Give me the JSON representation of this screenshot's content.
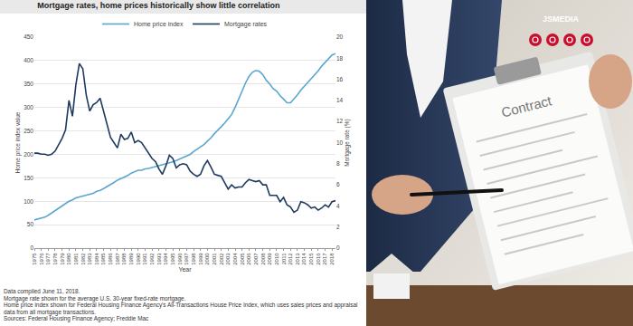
{
  "chart_data": {
    "type": "line",
    "title": "Mortgage rates, home prices historically show little correlation",
    "x_label": "Year",
    "y_label": "Home price index value",
    "y2_label": "Mortgage rate (%)",
    "notes": [
      "Data compiled June 11, 2018.",
      "Mortgage rate shown for the average U.S. 30-year fixed-rate mortgage.",
      "Home price index shown for Federal Housing Finance Agency's All-Transactions House Price Index, which uses sales prices and appraisal data from all mortgage transactions.",
      "Sources: Federal Housing Finance Agency; Freddie Mac"
    ],
    "x": [
      1975,
      1975.5,
      1976,
      1976.5,
      1977,
      1977.5,
      1978,
      1978.5,
      1979,
      1979.5,
      1980,
      1980.5,
      1981,
      1981.5,
      1982,
      1982.5,
      1983,
      1983.5,
      1984,
      1984.5,
      1985,
      1985.5,
      1986,
      1986.5,
      1987,
      1987.5,
      1988,
      1988.5,
      1989,
      1989.5,
      1990,
      1990.5,
      1991,
      1991.5,
      1992,
      1992.5,
      1993,
      1993.5,
      1994,
      1994.5,
      1995,
      1995.5,
      1996,
      1996.5,
      1997,
      1997.5,
      1998,
      1998.5,
      1999,
      1999.5,
      2000,
      2000.5,
      2001,
      2001.5,
      2002,
      2002.5,
      2003,
      2003.5,
      2004,
      2004.5,
      2005,
      2005.5,
      2006,
      2006.5,
      2007,
      2007.5,
      2008,
      2008.5,
      2009,
      2009.5,
      2010,
      2010.5,
      2011,
      2011.5,
      2012,
      2012.5,
      2013,
      2013.5,
      2014,
      2014.5,
      2015,
      2015.5,
      2016,
      2016.5,
      2017,
      2017.5,
      2018,
      2018.5
    ],
    "series": [
      {
        "name": "Home price index",
        "color": "#5ba6d0",
        "values": [
          60,
          62,
          64,
          66,
          70,
          75,
          80,
          85,
          90,
          95,
          100,
          103,
          107,
          109,
          111,
          112,
          115,
          117,
          121,
          123,
          127,
          131,
          136,
          140,
          145,
          148,
          152,
          155,
          160,
          163,
          166,
          166,
          169,
          170,
          172,
          174,
          175,
          177,
          180,
          182,
          184,
          187,
          190,
          193,
          197,
          200,
          206,
          211,
          216,
          221,
          228,
          235,
          244,
          251,
          259,
          267,
          276,
          285,
          300,
          318,
          335,
          352,
          366,
          375,
          379,
          377,
          370,
          358,
          350,
          340,
          335,
          325,
          318,
          310,
          310,
          318,
          327,
          337,
          345,
          355,
          362,
          370,
          378,
          388,
          396,
          405,
          412,
          415
        ]
      },
      {
        "name": "Mortgage rates",
        "color": "#1f3a5f",
        "axis": "y2",
        "values": [
          9.0,
          9.0,
          8.9,
          8.9,
          8.8,
          8.9,
          9.2,
          9.8,
          10.4,
          11.2,
          14.0,
          12.5,
          15.5,
          17.5,
          17.0,
          14.5,
          13.0,
          13.6,
          13.8,
          14.2,
          13.0,
          11.8,
          10.5,
          10.0,
          9.5,
          10.8,
          10.3,
          10.4,
          11.0,
          10.0,
          10.2,
          10.0,
          9.5,
          9.0,
          8.5,
          8.2,
          7.5,
          7.0,
          7.8,
          8.8,
          8.5,
          7.6,
          7.9,
          8.0,
          7.9,
          7.3,
          7.0,
          6.8,
          7.0,
          7.8,
          8.3,
          7.7,
          7.0,
          6.9,
          6.8,
          6.2,
          5.6,
          6.0,
          5.7,
          5.8,
          5.8,
          6.2,
          6.5,
          6.4,
          6.3,
          6.4,
          6.0,
          6.0,
          5.0,
          5.0,
          5.0,
          4.4,
          4.8,
          4.1,
          3.9,
          3.4,
          3.6,
          4.4,
          4.3,
          4.1,
          3.8,
          3.9,
          3.6,
          3.8,
          4.1,
          3.9,
          4.4,
          4.5
        ]
      }
    ],
    "xlim": [
      1975,
      2018.5
    ],
    "xticks": [
      1975,
      1976,
      1977,
      1978,
      1979,
      1980,
      1981,
      1982,
      1983,
      1984,
      1985,
      1986,
      1987,
      1988,
      1989,
      1990,
      1991,
      1992,
      1993,
      1994,
      1995,
      1996,
      1997,
      1998,
      1999,
      2000,
      2001,
      2002,
      2003,
      2004,
      2005,
      2006,
      2007,
      2008,
      2009,
      2010,
      2011,
      2012,
      2013,
      2014,
      2015,
      2016,
      2017,
      2018
    ],
    "ylim": [
      0,
      450
    ],
    "yticks": [
      0,
      50,
      100,
      150,
      200,
      250,
      300,
      350,
      400,
      450
    ],
    "y2lim": [
      0,
      20
    ],
    "y2ticks": [
      0,
      2,
      4,
      6,
      8,
      10,
      12,
      14,
      16,
      18,
      20
    ],
    "grid": true,
    "legend": "top"
  },
  "photo": {
    "watermark": "JSMEDIA",
    "document_title": "Contract"
  }
}
